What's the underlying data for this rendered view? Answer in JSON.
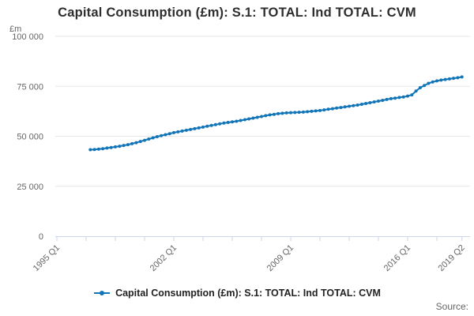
{
  "source_label": "Source:",
  "chart_data": {
    "type": "line",
    "title": "Capital Consumption (£m): S.1: TOTAL: Ind TOTAL: CVM",
    "y_unit": "£m",
    "ylim": [
      0,
      100000
    ],
    "grid": "horizontal-only",
    "legend_position": "bottom-center",
    "y_ticks": [
      {
        "v": 0,
        "label": "0"
      },
      {
        "v": 25000,
        "label": "25 000"
      },
      {
        "v": 50000,
        "label": "50 000"
      },
      {
        "v": 75000,
        "label": "75 000"
      },
      {
        "v": 100000,
        "label": "100 000"
      }
    ],
    "x_labels": [
      {
        "q": 0,
        "label": "1995 Q1"
      },
      {
        "q": 28,
        "label": "2002 Q1"
      },
      {
        "q": 56,
        "label": "2009 Q1"
      },
      {
        "q": 84,
        "label": "2016 Q1"
      },
      {
        "q": 97,
        "label": "2019 Q2"
      }
    ],
    "x_tick_quarters": [
      0,
      7,
      14,
      21,
      28,
      35,
      42,
      49,
      56,
      63,
      70,
      77,
      84,
      91,
      97
    ],
    "series": [
      {
        "name": "Capital Consumption (£m): S.1: TOTAL: Ind TOTAL: CVM",
        "frequency": "quarterly",
        "start": "1997 Q1",
        "start_quarter_offset": 8,
        "values": [
          43300,
          43400,
          43600,
          43800,
          44100,
          44400,
          44700,
          45000,
          45400,
          45800,
          46300,
          46800,
          47400,
          48000,
          48600,
          49200,
          49800,
          50300,
          50800,
          51300,
          51800,
          52200,
          52600,
          53000,
          53400,
          53800,
          54200,
          54600,
          55000,
          55400,
          55800,
          56200,
          56600,
          56900,
          57200,
          57500,
          57900,
          58300,
          58700,
          59100,
          59500,
          59900,
          60300,
          60700,
          61000,
          61300,
          61500,
          61700,
          61800,
          61900,
          62000,
          62100,
          62300,
          62500,
          62700,
          62900,
          63200,
          63500,
          63800,
          64100,
          64400,
          64700,
          65000,
          65300,
          65600,
          66000,
          66400,
          66800,
          67200,
          67600,
          68000,
          68400,
          68800,
          69100,
          69400,
          69700,
          70100,
          70700,
          72600,
          74300,
          75400,
          76500,
          77200,
          77700,
          78100,
          78400,
          78700,
          79000,
          79300,
          79700
        ]
      }
    ],
    "colors": {
      "series": "#1275b8",
      "grid": "#e6e6e6",
      "axis": "#ccd6eb",
      "tick_text": "#666666",
      "title_text": "#2e2e2e",
      "source_text": "#666666"
    }
  }
}
